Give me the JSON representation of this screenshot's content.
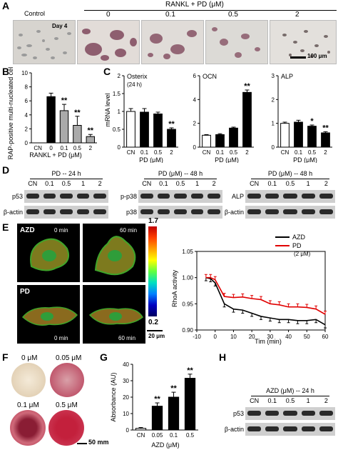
{
  "panelA": {
    "letter": "A",
    "label_control": "Control",
    "label_header": "RANKL + PD (μM)",
    "conc": [
      "0",
      "0.1",
      "0.5",
      "2"
    ],
    "day_label": "Day 4",
    "scale_label": "100 μm"
  },
  "panelB": {
    "letter": "B",
    "ylabel": "TRAP-positive multi-nucleated cells",
    "xlabel": "RANKL + PD (μM)",
    "chart_data": {
      "type": "bar",
      "categories": [
        "CN",
        "0",
        "0.1",
        "0.5",
        "2"
      ],
      "values": [
        0,
        6.6,
        4.6,
        2.5,
        0.9
      ],
      "errors": [
        0,
        0.5,
        0.9,
        1.3,
        0.3
      ],
      "ylim": [
        0,
        10
      ],
      "yticks": [
        "0",
        "2",
        "4",
        "6",
        "8",
        "10"
      ],
      "significance": [
        "",
        "",
        "**",
        "**",
        "**"
      ]
    }
  },
  "panelC": {
    "letter": "C",
    "ylabel": "mRNA level",
    "xlabel": "PD (μM)",
    "chart_data": [
      {
        "type": "bar",
        "title": "Osterix",
        "subtitle": "(24 h)",
        "categories": [
          "CN",
          "0.1",
          "0.5",
          "2"
        ],
        "values": [
          1.0,
          0.98,
          0.93,
          0.5
        ],
        "errors": [
          0.08,
          0.1,
          0.05,
          0.04
        ],
        "ylim": [
          0,
          2
        ],
        "yticks": [
          "0",
          "0.5",
          "1",
          "1.5",
          "2"
        ],
        "significance": [
          "",
          "",
          "",
          "**"
        ]
      },
      {
        "type": "bar",
        "title": "OCN",
        "categories": [
          "CN",
          "0.1",
          "0.5",
          "2"
        ],
        "values": [
          1.0,
          1.05,
          1.6,
          4.6
        ],
        "errors": [
          0.05,
          0.08,
          0.08,
          0.2
        ],
        "ylim": [
          0,
          6
        ],
        "yticks": [
          "0",
          "2",
          "4",
          "6"
        ],
        "significance": [
          "",
          "",
          "",
          "**"
        ]
      },
      {
        "type": "bar",
        "title": "ALP",
        "categories": [
          "CN",
          "0.1",
          "0.5",
          "2"
        ],
        "values": [
          1.0,
          1.05,
          0.88,
          0.6
        ],
        "errors": [
          0.05,
          0.08,
          0.05,
          0.05
        ],
        "ylim": [
          0,
          3
        ],
        "yticks": [
          "0",
          "1",
          "2",
          "3"
        ],
        "significance": [
          "",
          "",
          "*",
          "**"
        ]
      }
    ]
  },
  "panelD": {
    "letter": "D",
    "blots": [
      {
        "header": "PD -- 24 h",
        "lanes": [
          "CN",
          "0.1",
          "0.5",
          "1",
          "2"
        ],
        "rows": [
          "p53",
          "β-actin"
        ]
      },
      {
        "header": "PD (μM) -- 48 h",
        "lanes": [
          "CN",
          "0.1",
          "0.5",
          "1",
          "2"
        ],
        "rows": [
          "p-p38",
          "p38"
        ]
      },
      {
        "header": "PD (μM) -- 48 h",
        "lanes": [
          "CN",
          "0.1",
          "0.5",
          "1",
          "2"
        ],
        "rows": [
          "ALP",
          "β-actin"
        ]
      }
    ]
  },
  "panelE": {
    "letter": "E",
    "row_labels": [
      "AZD",
      "PD"
    ],
    "time_labels": [
      "0 min",
      "60 min"
    ],
    "colorbar_max": "1.7",
    "colorbar_min": "0.2",
    "scale_label": "20 μm",
    "chart_data": {
      "type": "line",
      "xlabel": "Tim (min)",
      "ylabel": "RhoA activity",
      "xlim": [
        -10,
        60
      ],
      "ylim": [
        0.9,
        1.05
      ],
      "xticks": [
        "-10",
        "0",
        "10",
        "20",
        "30",
        "40",
        "50",
        "60"
      ],
      "yticks": [
        "0.90",
        "0.95",
        "1.00",
        "1.05"
      ],
      "x": [
        -5,
        -2.5,
        0,
        5,
        10,
        15,
        20,
        25,
        30,
        35,
        40,
        45,
        50,
        55,
        60
      ],
      "series": [
        {
          "name": "AZD",
          "color": "#000000",
          "values": [
            1.0,
            0.998,
            0.99,
            0.95,
            0.94,
            0.938,
            0.932,
            0.926,
            0.923,
            0.92,
            0.92,
            0.918,
            0.918,
            0.92,
            0.91
          ]
        },
        {
          "name": "PD",
          "color": "#e00000",
          "values": [
            1.0,
            1.0,
            0.996,
            0.964,
            0.962,
            0.963,
            0.96,
            0.958,
            0.95,
            0.948,
            0.944,
            0.944,
            0.943,
            0.94,
            0.93
          ]
        }
      ],
      "legend_note": "(2 μM)"
    }
  },
  "panelF": {
    "letter": "F",
    "labels": [
      "0 μM",
      "0.05 μM",
      "0.1 μM",
      "0.5 μM"
    ],
    "scale_label": "50 mm"
  },
  "panelG": {
    "letter": "G",
    "ylabel": "Absorbance (AU)",
    "xlabel": "AZD (μM)",
    "chart_data": {
      "type": "bar",
      "categories": [
        "CN",
        "0.05",
        "0.1",
        "0.5"
      ],
      "values": [
        1.0,
        14.5,
        20.0,
        31.5
      ],
      "errors": [
        0.5,
        2.0,
        3.0,
        2.5
      ],
      "ylim": [
        0,
        40
      ],
      "yticks": [
        "0",
        "10",
        "20",
        "30",
        "40"
      ],
      "significance": [
        "",
        "**",
        "**",
        "**"
      ]
    }
  },
  "panelH": {
    "letter": "H",
    "header": "AZD (μM) -- 24 h",
    "lanes": [
      "CN",
      "0.1",
      "0.5",
      "1",
      "2"
    ],
    "rows": [
      "p53",
      "β-actin"
    ]
  }
}
